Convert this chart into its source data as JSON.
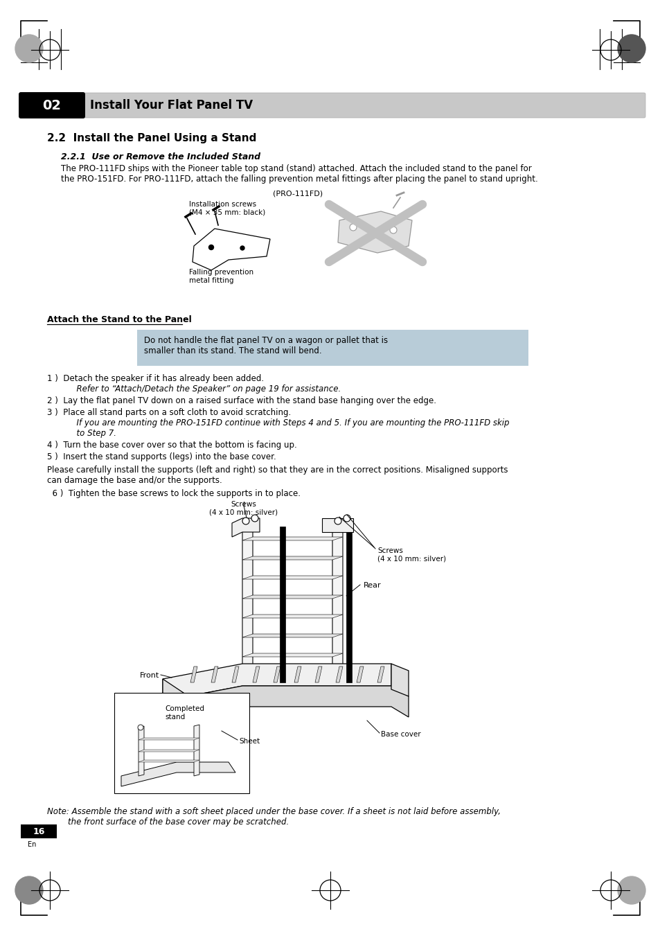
{
  "page_bg": "#ffffff",
  "header_bar_color": "#c8c8c8",
  "header_num_bg": "#000000",
  "header_num_text": "#ffffff",
  "header_title": "Install Your Flat Panel TV",
  "header_num": "02",
  "section_title": "2.2  Install the Panel Using a Stand",
  "sub_section_title": "2.2.1  Use or Remove the Included Stand",
  "body_text1a": "The PRO-111FD ships with the Pioneer table top stand (stand) attached. Attach the included stand to the panel for",
  "body_text1b": "the PRO-151FD. For PRO-111FD, attach the falling prevention metal fittings after placing the panel to stand upright.",
  "caption_pro": "(PRO-111FD)",
  "label_install_screws": "Installation screws\n(M4 × 35 mm: black)",
  "label_falling": "Falling prevention\nmetal fitting",
  "attach_title": "Attach the Stand to the Panel",
  "warning_text1": "Do not handle the flat panel TV on a wagon or pallet that is",
  "warning_text2": "smaller than its stand. The stand will bend.",
  "step1a": "1 )  Detach the speaker if it has already been added.",
  "step1b": "      Refer to “Attach/Detach the Speaker” on page 19 for assistance.",
  "step2": "2 )  Lay the flat panel TV down on a raised surface with the stand base hanging over the edge.",
  "step3a": "3 )  Place all stand parts on a soft cloth to avoid scratching.",
  "step3b": "      If you are mounting the PRO-151FD continue with Steps 4 and 5. If you are mounting the PRO-111FD skip",
  "step3c": "      to Step 7.",
  "step4": "4 )  Turn the base cover over so that the bottom is facing up.",
  "step5": "5 )  Insert the stand supports (legs) into the base cover.",
  "note_before_6a": "Please carefully install the supports (left and right) so that they are in the correct positions. Misaligned supports",
  "note_before_6b": "can damage the base and/or the supports.",
  "step6": "  6 )  Tighten the base screws to lock the supports in to place.",
  "label_screws_top": "Screws\n(4 x 10 mm: silver)",
  "label_screws_right": "Screws\n(4 x 10 mm: silver)",
  "label_rear": "Rear",
  "label_front": "Front",
  "label_completed": "Completed\nstand",
  "label_sheet": "Sheet",
  "label_base_cover": "Base cover",
  "note_bottom1": "Note: Assemble the stand with a soft sheet placed under the base cover. If a sheet is not laid before assembly,",
  "note_bottom2": "        the front surface of the base cover may be scratched.",
  "page_num": "16",
  "warning_bg": "#b8ccd8"
}
